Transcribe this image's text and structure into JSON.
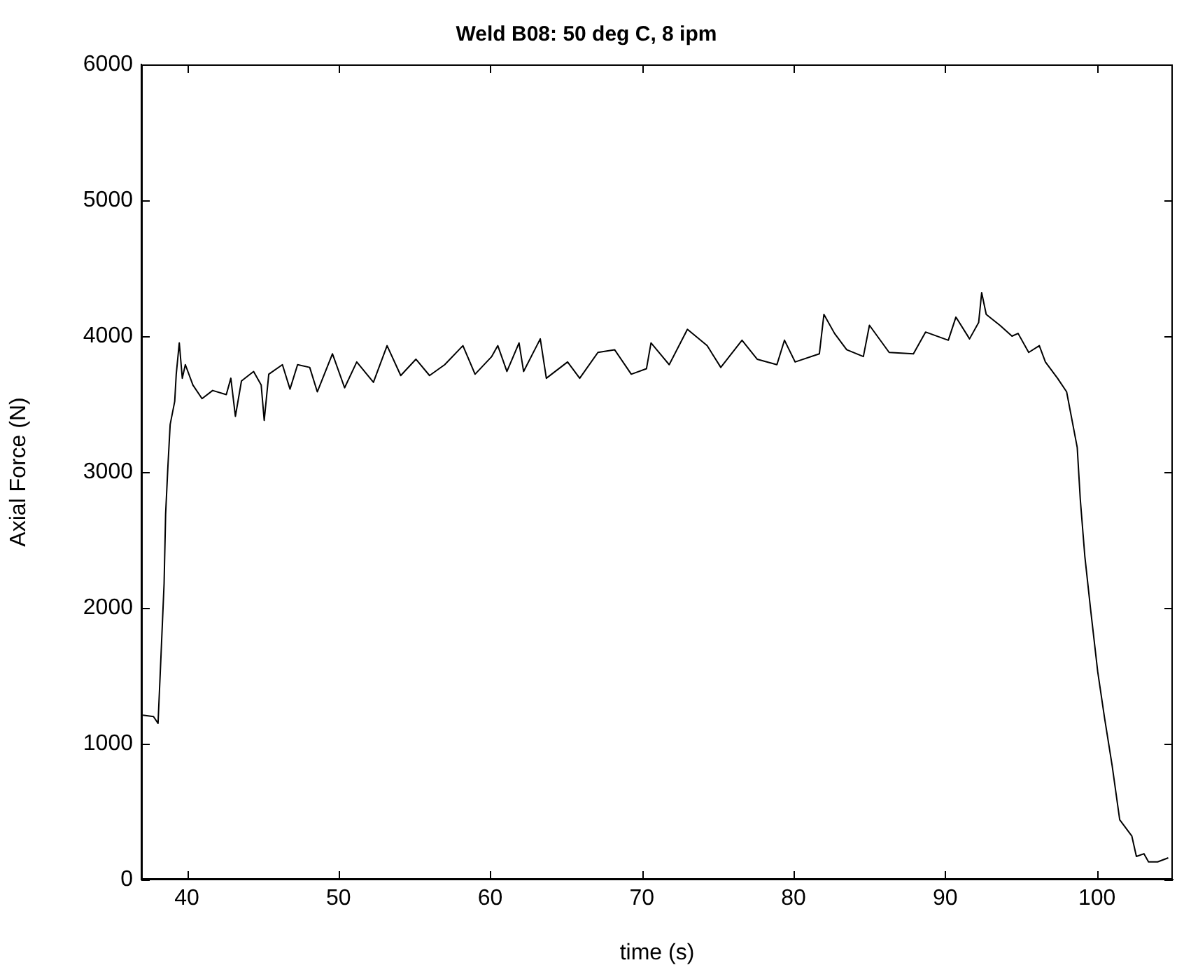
{
  "chart_data": {
    "type": "line",
    "title": "Weld B08: 50 deg C, 8 ipm",
    "xlabel": "time (s)",
    "ylabel": "Axial Force (N)",
    "xlim": [
      37,
      105
    ],
    "xticks": [
      40,
      50,
      60,
      70,
      80,
      90,
      100
    ],
    "ylim": [
      0,
      6000
    ],
    "yticks": [
      0,
      1000,
      2000,
      3000,
      4000,
      5000,
      6000
    ],
    "grid": false,
    "legend": false,
    "marker": "none",
    "line_style": "solid",
    "series": [
      {
        "color": "#000000",
        "x": [
          37.1,
          37.8,
          38.1,
          38.3,
          38.5,
          38.6,
          38.75,
          38.9,
          39.2,
          39.3,
          39.5,
          39.7,
          39.9,
          40.4,
          41.0,
          41.7,
          42.6,
          42.9,
          43.2,
          43.6,
          44.4,
          44.9,
          45.1,
          45.4,
          46.3,
          46.8,
          47.3,
          48.1,
          48.6,
          49.6,
          50.4,
          51.2,
          52.3,
          53.2,
          54.1,
          55.1,
          56.0,
          57.0,
          58.2,
          59.0,
          60.1,
          60.5,
          61.1,
          61.9,
          62.2,
          63.3,
          63.7,
          65.1,
          65.9,
          67.1,
          68.2,
          69.3,
          70.3,
          70.6,
          71.8,
          73.0,
          74.3,
          75.2,
          76.6,
          77.6,
          78.9,
          79.4,
          80.1,
          81.7,
          82.0,
          82.7,
          83.5,
          84.6,
          85.0,
          86.3,
          87.9,
          88.7,
          90.2,
          90.7,
          91.6,
          92.2,
          92.4,
          92.7,
          93.6,
          94.4,
          94.8,
          95.5,
          96.2,
          96.6,
          97.4,
          98.0,
          98.7,
          98.9,
          99.2,
          99.6,
          100.05,
          100.5,
          101.0,
          101.5,
          102.3,
          102.6,
          103.1,
          103.4,
          104.0,
          104.7
        ],
        "values": [
          1210,
          1200,
          1150,
          1660,
          2180,
          2690,
          3040,
          3350,
          3520,
          3720,
          3950,
          3690,
          3790,
          3640,
          3540,
          3600,
          3570,
          3690,
          3410,
          3670,
          3740,
          3640,
          3380,
          3720,
          3790,
          3610,
          3790,
          3770,
          3590,
          3870,
          3620,
          3810,
          3660,
          3930,
          3710,
          3830,
          3710,
          3790,
          3930,
          3720,
          3850,
          3930,
          3740,
          3950,
          3740,
          3980,
          3690,
          3810,
          3690,
          3880,
          3900,
          3720,
          3760,
          3950,
          3790,
          4050,
          3930,
          3770,
          3970,
          3830,
          3790,
          3970,
          3810,
          3870,
          4160,
          4020,
          3900,
          3850,
          4080,
          3880,
          3870,
          4030,
          3970,
          4140,
          3980,
          4100,
          4320,
          4160,
          4080,
          4000,
          4020,
          3880,
          3930,
          3810,
          3690,
          3590,
          3180,
          2800,
          2380,
          1970,
          1530,
          1190,
          840,
          440,
          320,
          170,
          190,
          130,
          130,
          160
        ]
      }
    ]
  }
}
